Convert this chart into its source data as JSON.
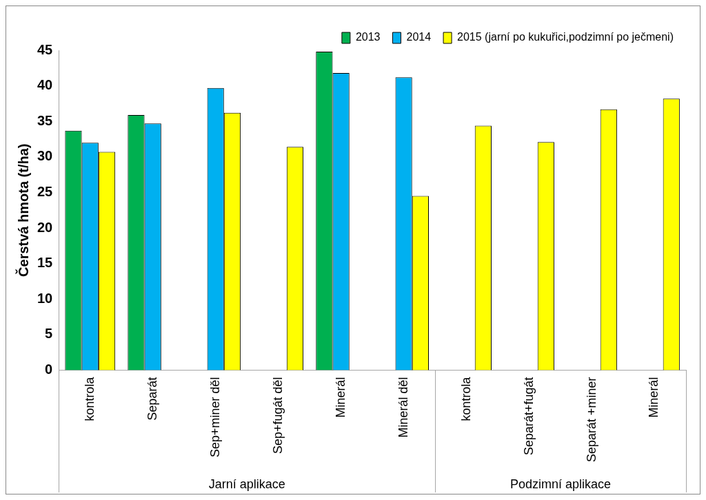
{
  "chart_data": {
    "type": "bar",
    "ylabel": "Čerstvá hmota (t/ha)",
    "categories": [
      "kontrola",
      "Separát",
      "Sep+miner děl",
      "Sep+fugát děl",
      "Minerál",
      "Minerál děl",
      "kontrola",
      "Separát+fugát",
      "Separát +miner",
      "Minerál"
    ],
    "series": [
      {
        "name": "2013",
        "color": "#00b050",
        "values": [
          33.7,
          35.9,
          null,
          null,
          44.8,
          null,
          null,
          null,
          null,
          null
        ]
      },
      {
        "name": "2014",
        "color": "#00b0f0",
        "values": [
          32.0,
          34.7,
          39.7,
          null,
          41.8,
          41.2,
          null,
          null,
          null,
          null
        ]
      },
      {
        "name": "2015 (jarní po kukuřici,podzimní po ječmeni)",
        "color": "#ffff00",
        "values": [
          30.7,
          null,
          36.2,
          31.4,
          null,
          24.5,
          34.4,
          32.1,
          36.7,
          38.2
        ]
      }
    ],
    "ylim": [
      0,
      45
    ],
    "yticks": [
      0,
      5,
      10,
      15,
      20,
      25,
      30,
      35,
      40,
      45
    ],
    "grid": false,
    "legend": "top right",
    "annotations": [
      "Jarní aplikace",
      "Podzimní aplikace"
    ]
  }
}
